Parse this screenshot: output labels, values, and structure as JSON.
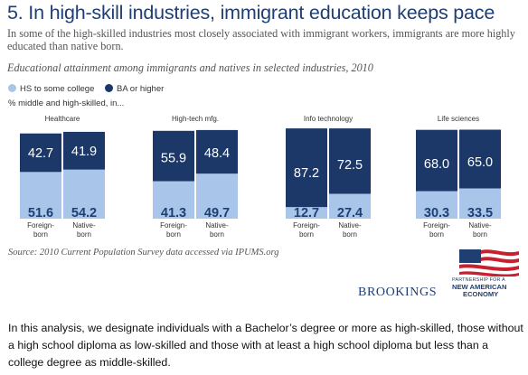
{
  "title": "5. In high-skill industries, immigrant education keeps pace",
  "subtitle": "In some of the high-skilled industries most closely associated with immigrant workers, immigrants are more highly educated than native born.",
  "panel_description": "Educational attainment among immigrants and natives in selected industries, 2010",
  "legend": [
    {
      "label": "HS to some college",
      "color": "#a9c6ea"
    },
    {
      "label": "BA or higher",
      "color": "#1b3868"
    }
  ],
  "y_unit": "% middle and high-skilled, in...",
  "source": "Source: 2010 Current Population Survey data accessed via IPUMS.org",
  "logo": {
    "brookings": "BROOKINGS",
    "partner_line": "PARTNERSHIP FOR A",
    "nae_line1": "NEW AMERICAN",
    "nae_line2": "ECONOMY"
  },
  "note": "In this analysis, we designate individuals with a Bachelor’s degree or more as high-skilled, those without a high school diploma as low-skilled and those with at least a high school diploma but less than a college degree as middle-skilled.",
  "chart_data": {
    "type": "bar",
    "stacked": true,
    "ylim": [
      0,
      100
    ],
    "grid": false,
    "legend_position": "top-left",
    "series": [
      {
        "name": "HS to some college",
        "color": "#a9c6ea"
      },
      {
        "name": "BA or higher",
        "color": "#1b3868"
      }
    ],
    "groups": [
      {
        "industry": "Healthcare",
        "bars": [
          {
            "label_line1": "Foreign-",
            "label_line2": "born",
            "hs_some_college": 51.6,
            "hs_label": "51.6",
            "ba_or_higher": 42.7,
            "ba_label": "42.7"
          },
          {
            "label_line1": "Native-",
            "label_line2": "born",
            "hs_some_college": 54.2,
            "hs_label": "54.2",
            "ba_or_higher": 41.9,
            "ba_label": "41.9"
          }
        ]
      },
      {
        "industry": "High-tech mfg.",
        "bars": [
          {
            "label_line1": "Foreign-",
            "label_line2": "born",
            "hs_some_college": 41.3,
            "hs_label": "41.3",
            "ba_or_higher": 55.9,
            "ba_label": "55.9"
          },
          {
            "label_line1": "Native-",
            "label_line2": "born",
            "hs_some_college": 49.7,
            "hs_label": "49.7",
            "ba_or_higher": 48.4,
            "ba_label": "48.4"
          }
        ]
      },
      {
        "industry": "Info technology",
        "bars": [
          {
            "label_line1": "Foreign-",
            "label_line2": "born",
            "hs_some_college": 12.7,
            "hs_label": "12.7",
            "ba_or_higher": 87.2,
            "ba_label": "87.2"
          },
          {
            "label_line1": "Native-",
            "label_line2": "born",
            "hs_some_college": 27.4,
            "hs_label": "27.4",
            "ba_or_higher": 72.5,
            "ba_label": "72.5"
          }
        ]
      },
      {
        "industry": "Life sciences",
        "bars": [
          {
            "label_line1": "Foreign-",
            "label_line2": "born",
            "hs_some_college": 30.3,
            "hs_label": "30.3",
            "ba_or_higher": 68.0,
            "ba_label": "68.0"
          },
          {
            "label_line1": "Native-",
            "label_line2": "born",
            "hs_some_college": 33.5,
            "hs_label": "33.5",
            "ba_or_higher": 65.0,
            "ba_label": "65.0"
          }
        ]
      }
    ]
  }
}
